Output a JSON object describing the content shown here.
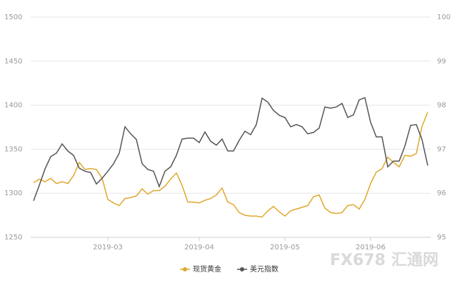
{
  "chart_data": {
    "type": "line",
    "categories": [
      null,
      null,
      null,
      null,
      null,
      null,
      null,
      null,
      null,
      null,
      null,
      null,
      null,
      "2019-03",
      null,
      null,
      null,
      null,
      null,
      null,
      null,
      null,
      null,
      null,
      null,
      null,
      null,
      null,
      null,
      "2019-04",
      null,
      null,
      null,
      null,
      null,
      null,
      null,
      null,
      null,
      null,
      null,
      null,
      null,
      null,
      "2019-05",
      null,
      null,
      null,
      null,
      null,
      null,
      null,
      null,
      null,
      null,
      null,
      null,
      null,
      null,
      "2019-06",
      null,
      null,
      null,
      null,
      null,
      null,
      null,
      null,
      null,
      null
    ],
    "series": [
      {
        "name": "现货黄金",
        "color": "#e0a82e",
        "axis": "y",
        "values": [
          1312,
          1316,
          1313,
          1317,
          1311,
          1313,
          1311,
          1320,
          1335,
          1327,
          1328,
          1327,
          1317,
          1293,
          1289,
          1286,
          1294,
          1295,
          1297,
          1305,
          1299,
          1303,
          1303,
          1308,
          1316,
          1323,
          1309,
          1290,
          1290,
          1289,
          1292,
          1294,
          1298,
          1306,
          1290,
          1287,
          1278,
          1275,
          1274,
          1274,
          1273,
          1280,
          1285,
          1279,
          1274,
          1280,
          1282,
          1284,
          1286,
          1296,
          1298,
          1283,
          1278,
          1277,
          1278,
          1286,
          1287,
          1282,
          1293,
          1311,
          1324,
          1328,
          1341,
          1335,
          1330,
          1343,
          1342,
          1345,
          1376,
          1392
        ]
      },
      {
        "name": "美元指数",
        "color": "#555555",
        "axis": "y2",
        "values": [
          95.83,
          96.18,
          96.55,
          96.83,
          96.91,
          97.12,
          96.96,
          96.86,
          96.57,
          96.5,
          96.47,
          96.21,
          96.34,
          96.5,
          96.67,
          96.91,
          97.51,
          97.35,
          97.22,
          96.67,
          96.54,
          96.5,
          96.15,
          96.5,
          96.6,
          96.86,
          97.23,
          97.25,
          97.25,
          97.15,
          97.39,
          97.18,
          97.09,
          97.23,
          96.96,
          96.96,
          97.2,
          97.41,
          97.33,
          97.56,
          98.16,
          98.07,
          97.88,
          97.77,
          97.72,
          97.51,
          97.56,
          97.51,
          97.35,
          97.38,
          97.48,
          97.96,
          97.93,
          97.96,
          98.04,
          97.72,
          97.78,
          98.12,
          98.17,
          97.61,
          97.28,
          97.28,
          96.6,
          96.73,
          96.73,
          97.07,
          97.54,
          97.56,
          97.22,
          96.63
        ]
      }
    ],
    "ylim": [
      1250,
      1500
    ],
    "yticks": [
      1250,
      1300,
      1350,
      1400,
      1450,
      1500
    ],
    "y2lim": [
      95,
      100
    ],
    "y2ticks": [
      95,
      96,
      97,
      98,
      99,
      100
    ],
    "grid": true,
    "watermark": [
      "FX678",
      "汇通网"
    ]
  }
}
